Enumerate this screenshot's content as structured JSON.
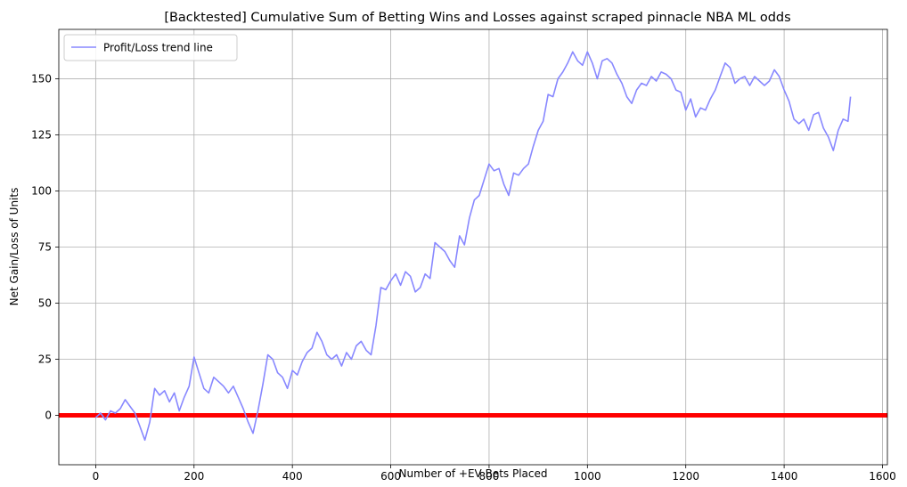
{
  "chart_data": {
    "type": "line",
    "title": "[Backtested] Cumulative Sum of Betting Wins and Losses against scraped pinnacle NBA ML odds",
    "xlabel": "Number of +EV Bets Placed",
    "ylabel": "Net Gain/Loss of Units",
    "xlim": [
      -75,
      1610
    ],
    "ylim": [
      -22,
      172
    ],
    "xticks": [
      0,
      200,
      400,
      600,
      800,
      1000,
      1200,
      1400,
      1600
    ],
    "yticks": [
      0,
      25,
      50,
      75,
      100,
      125,
      150
    ],
    "grid": true,
    "legend_position": "top-left",
    "series": [
      {
        "name": "Profit/Loss trend line",
        "color": "#8888ff",
        "x": [
          0,
          10,
          20,
          30,
          40,
          50,
          60,
          70,
          80,
          90,
          100,
          110,
          120,
          130,
          140,
          150,
          160,
          170,
          180,
          190,
          200,
          210,
          220,
          230,
          240,
          250,
          260,
          270,
          280,
          290,
          300,
          310,
          320,
          330,
          340,
          350,
          360,
          370,
          380,
          390,
          400,
          410,
          420,
          430,
          440,
          450,
          460,
          470,
          480,
          490,
          500,
          510,
          520,
          530,
          540,
          550,
          560,
          570,
          580,
          590,
          600,
          610,
          620,
          630,
          640,
          650,
          660,
          670,
          680,
          690,
          700,
          710,
          720,
          730,
          740,
          750,
          760,
          770,
          780,
          790,
          800,
          810,
          820,
          830,
          840,
          850,
          860,
          870,
          880,
          890,
          900,
          910,
          920,
          930,
          940,
          950,
          960,
          970,
          980,
          990,
          1000,
          1010,
          1020,
          1030,
          1040,
          1050,
          1060,
          1070,
          1080,
          1090,
          1100,
          1110,
          1120,
          1130,
          1140,
          1150,
          1160,
          1170,
          1180,
          1190,
          1200,
          1210,
          1220,
          1230,
          1240,
          1250,
          1260,
          1270,
          1280,
          1290,
          1300,
          1310,
          1320,
          1330,
          1340,
          1350,
          1360,
          1370,
          1380,
          1390,
          1400,
          1410,
          1420,
          1430,
          1440,
          1450,
          1460,
          1470,
          1480,
          1490,
          1500,
          1510,
          1520,
          1530,
          1535
        ],
        "values": [
          -1,
          1,
          -2,
          2,
          1,
          3,
          7,
          4,
          1,
          -5,
          -11,
          -3,
          12,
          9,
          11,
          6,
          10,
          2,
          8,
          13,
          26,
          19,
          12,
          10,
          17,
          15,
          13,
          10,
          13,
          8,
          3,
          -3,
          -8,
          2,
          14,
          27,
          25,
          19,
          17,
          12,
          20,
          18,
          24,
          28,
          30,
          37,
          33,
          27,
          25,
          27,
          22,
          28,
          25,
          31,
          33,
          29,
          27,
          40,
          57,
          56,
          60,
          63,
          58,
          64,
          62,
          55,
          57,
          63,
          61,
          77,
          75,
          73,
          69,
          66,
          80,
          76,
          88,
          96,
          98,
          105,
          112,
          109,
          110,
          103,
          98,
          108,
          107,
          110,
          112,
          120,
          127,
          131,
          143,
          142,
          150,
          153,
          157,
          162,
          158,
          156,
          162,
          157,
          150,
          158,
          159,
          157,
          152,
          148,
          142,
          139,
          145,
          148,
          147,
          151,
          149,
          153,
          152,
          150,
          145,
          144,
          136,
          141,
          133,
          137,
          136,
          141,
          145,
          151,
          157,
          155,
          148,
          150,
          151,
          147,
          151,
          149,
          147,
          149,
          154,
          151,
          145,
          140,
          132,
          130,
          132,
          127,
          134,
          135,
          128,
          124,
          118,
          127,
          132,
          131,
          142
        ]
      }
    ],
    "baseline": {
      "y": 0,
      "color": "#ff0000"
    }
  }
}
